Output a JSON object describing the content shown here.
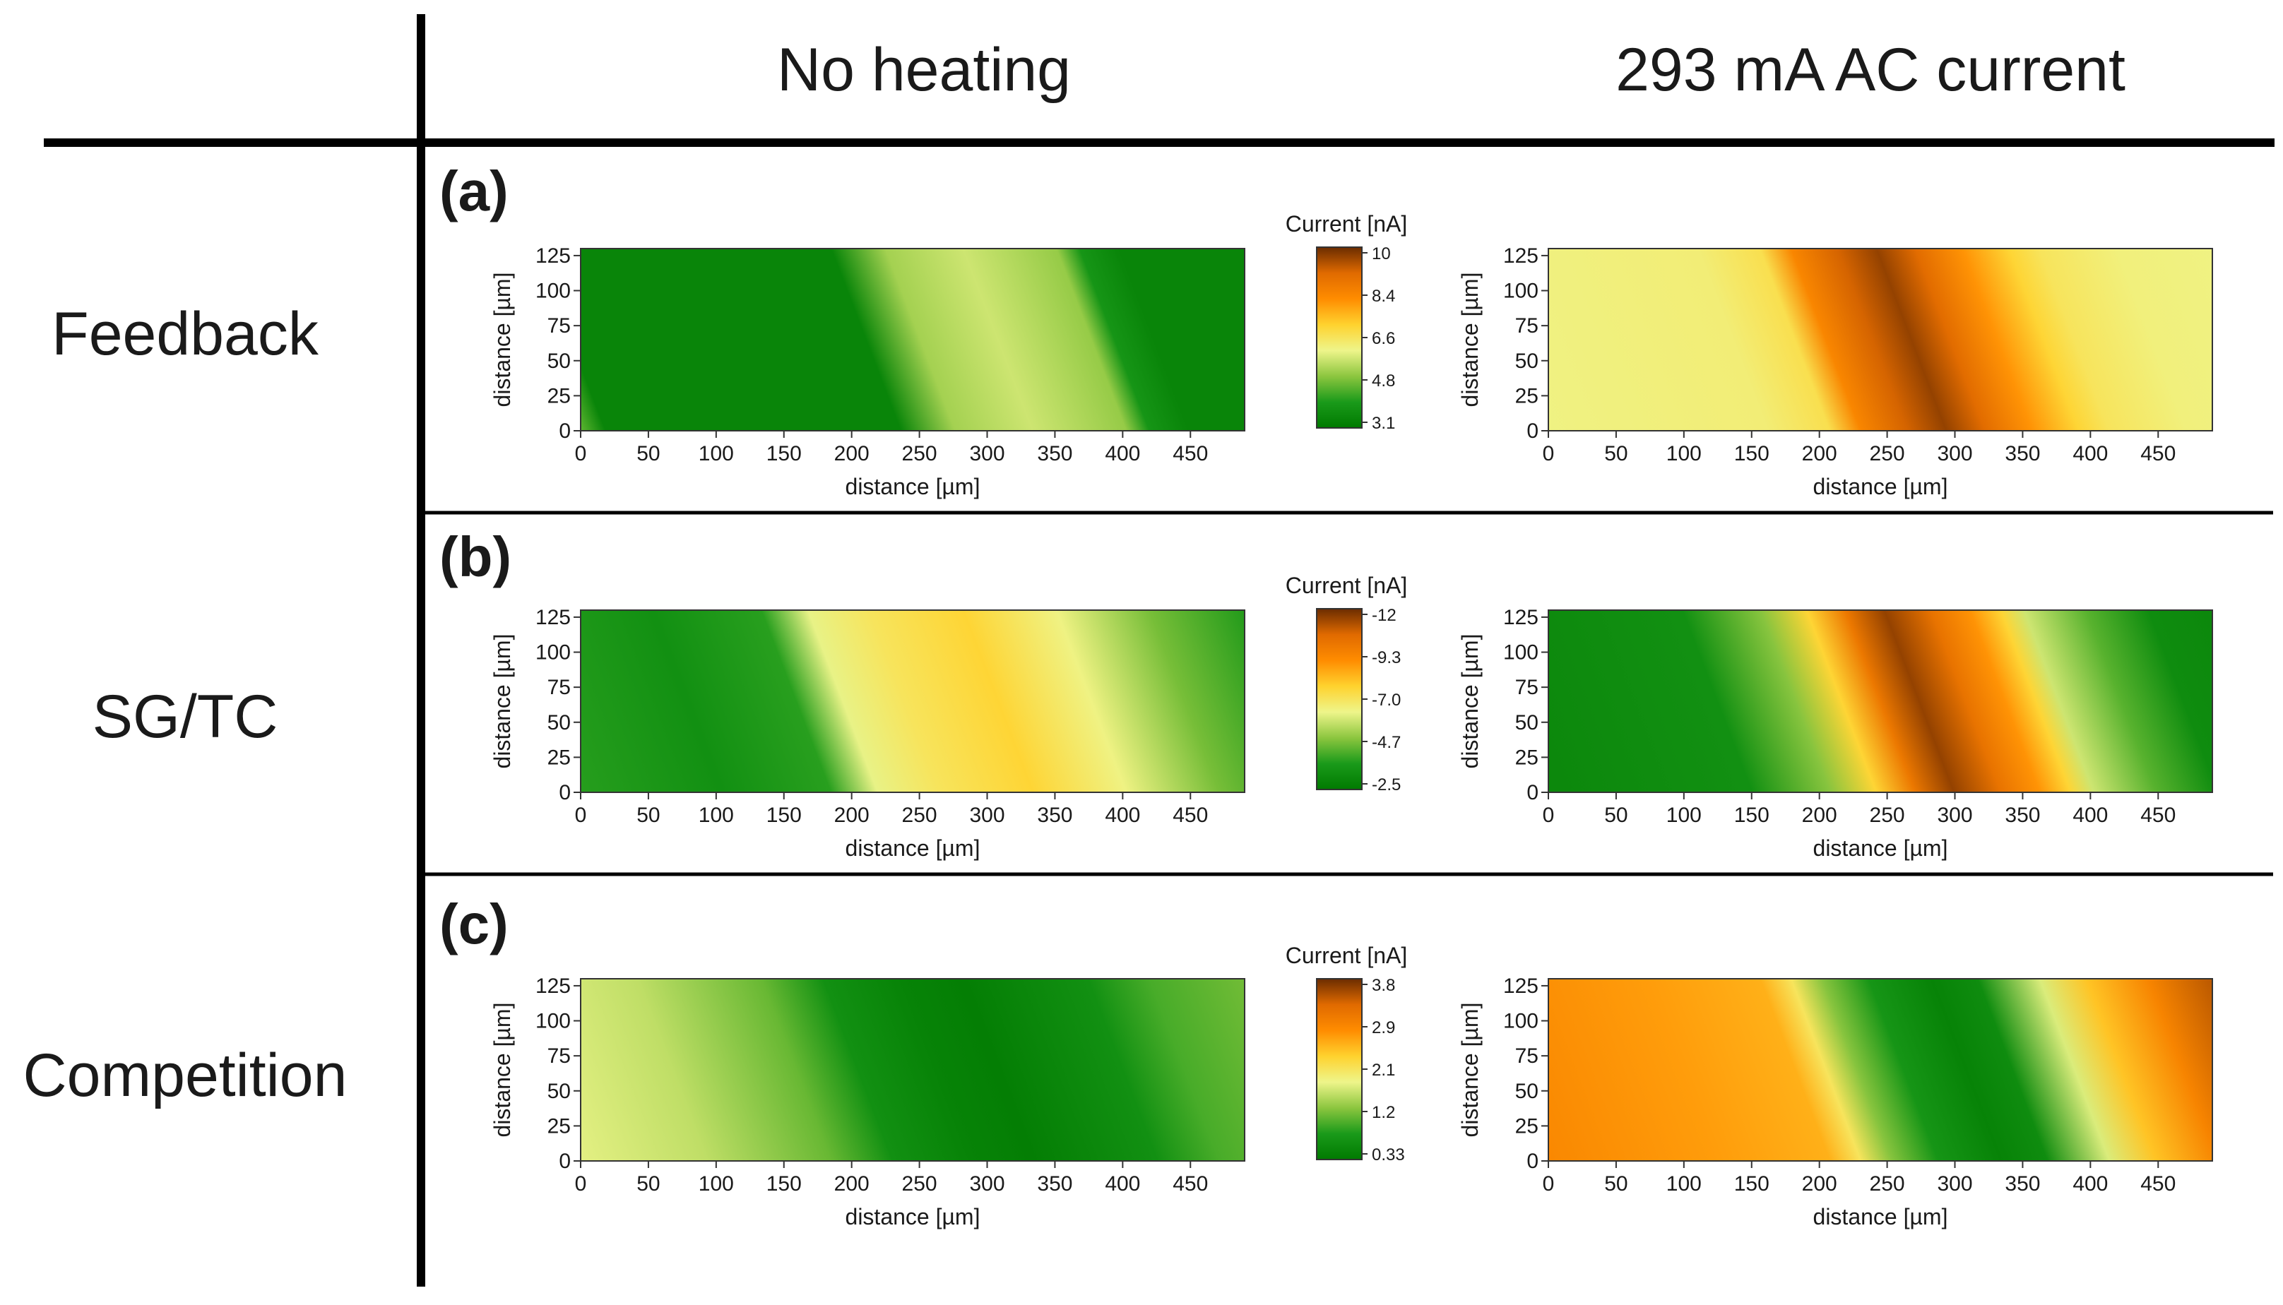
{
  "headers": {
    "col1": "No heating",
    "col2": "293 mA AC current"
  },
  "rows": [
    {
      "tag": "(a)",
      "mode": "Feedback",
      "colorbar": {
        "label": "Current [nA]",
        "ticks": [
          "10",
          "8.4",
          "6.6",
          "4.8",
          "3.1"
        ]
      }
    },
    {
      "tag": "(b)",
      "mode": "SG/TC",
      "colorbar": {
        "label": "Current [nA]",
        "ticks": [
          "-12",
          "-9.3",
          "-7.0",
          "-4.7",
          "-2.5"
        ]
      }
    },
    {
      "tag": "(c)",
      "mode": "Competition",
      "colorbar": {
        "label": "Current [nA]",
        "ticks": [
          "3.8",
          "2.9",
          "2.1",
          "1.2",
          "0.33"
        ]
      }
    }
  ],
  "colors": {
    "colormap": [
      "#007a00",
      "#1a9a1a",
      "#8cc63f",
      "#eef58a",
      "#ffd22e",
      "#ff8c00",
      "#e06a00",
      "#6b2c00"
    ],
    "table_lines": "#000000",
    "panel_border": "#555555"
  },
  "chart_data": [
    {
      "id": "a-no-heating",
      "type": "heatmap",
      "xlabel": "distance [µm]",
      "ylabel": "distance [µm]",
      "xlim": [
        0,
        490
      ],
      "ylim": [
        0,
        130
      ],
      "xticks": [
        0,
        50,
        100,
        150,
        200,
        250,
        300,
        350,
        400,
        450
      ],
      "yticks": [
        0,
        25,
        50,
        75,
        100,
        125
      ],
      "bands": [
        [
          0,
          0.38
        ],
        [
          10,
          0.22
        ],
        [
          25,
          0.05
        ],
        [
          150,
          0.05
        ],
        [
          215,
          0.05
        ],
        [
          250,
          0.32
        ],
        [
          300,
          0.38
        ],
        [
          360,
          0.3
        ],
        [
          375,
          0.12
        ],
        [
          400,
          0.05
        ],
        [
          490,
          0.05
        ]
      ]
    },
    {
      "id": "a-heating",
      "type": "heatmap",
      "xlabel": "distance [µm]",
      "ylabel": "distance [µm]",
      "xlim": [
        0,
        490
      ],
      "ylim": [
        0,
        130
      ],
      "xticks": [
        0,
        50,
        100,
        150,
        200,
        250,
        300,
        350,
        400,
        450
      ],
      "yticks": [
        0,
        25,
        50,
        75,
        100,
        125
      ],
      "bands": [
        [
          0,
          0.44
        ],
        [
          150,
          0.46
        ],
        [
          190,
          0.52
        ],
        [
          210,
          0.74
        ],
        [
          240,
          0.87
        ],
        [
          265,
          0.95
        ],
        [
          290,
          0.85
        ],
        [
          320,
          0.7
        ],
        [
          350,
          0.56
        ],
        [
          370,
          0.5
        ],
        [
          420,
          0.45
        ],
        [
          490,
          0.44
        ]
      ]
    },
    {
      "id": "b-no-heating",
      "type": "heatmap",
      "xlabel": "distance [µm]",
      "ylabel": "distance [µm]",
      "xlim": [
        0,
        490
      ],
      "ylim": [
        0,
        130
      ],
      "xticks": [
        0,
        50,
        100,
        150,
        200,
        250,
        300,
        350,
        400,
        450
      ],
      "yticks": [
        0,
        25,
        50,
        75,
        100,
        125
      ],
      "bands": [
        [
          0,
          0.16
        ],
        [
          100,
          0.1
        ],
        [
          170,
          0.16
        ],
        [
          200,
          0.42
        ],
        [
          240,
          0.5
        ],
        [
          300,
          0.56
        ],
        [
          360,
          0.44
        ],
        [
          420,
          0.26
        ],
        [
          490,
          0.12
        ]
      ]
    },
    {
      "id": "b-heating",
      "type": "heatmap",
      "xlabel": "distance [µm]",
      "ylabel": "distance [µm]",
      "xlim": [
        0,
        490
      ],
      "ylim": [
        0,
        130
      ],
      "xticks": [
        0,
        50,
        100,
        150,
        200,
        250,
        300,
        350,
        400,
        450
      ],
      "yticks": [
        0,
        25,
        50,
        75,
        100,
        125
      ],
      "bands": [
        [
          0,
          0.06
        ],
        [
          140,
          0.1
        ],
        [
          190,
          0.28
        ],
        [
          220,
          0.56
        ],
        [
          245,
          0.8
        ],
        [
          270,
          0.95
        ],
        [
          300,
          0.82
        ],
        [
          325,
          0.7
        ],
        [
          345,
          0.56
        ],
        [
          360,
          0.38
        ],
        [
          400,
          0.22
        ],
        [
          440,
          0.08
        ],
        [
          490,
          0.06
        ]
      ]
    },
    {
      "id": "c-no-heating",
      "type": "heatmap",
      "xlabel": "distance [µm]",
      "ylabel": "distance [µm]",
      "xlim": [
        0,
        490
      ],
      "ylim": [
        0,
        130
      ],
      "xticks": [
        0,
        50,
        100,
        150,
        200,
        250,
        300,
        350,
        400,
        450
      ],
      "yticks": [
        0,
        25,
        50,
        75,
        100,
        125
      ],
      "bands": [
        [
          0,
          0.42
        ],
        [
          90,
          0.36
        ],
        [
          170,
          0.24
        ],
        [
          210,
          0.1
        ],
        [
          260,
          0.04
        ],
        [
          300,
          0.02
        ],
        [
          380,
          0.1
        ],
        [
          420,
          0.2
        ],
        [
          490,
          0.26
        ]
      ]
    },
    {
      "id": "c-heating",
      "type": "heatmap",
      "xlabel": "distance [µm]",
      "ylabel": "distance [µm]",
      "xlim": [
        0,
        490
      ],
      "ylim": [
        0,
        130
      ],
      "xticks": [
        0,
        50,
        100,
        150,
        200,
        250,
        300,
        350,
        400,
        450
      ],
      "yticks": [
        0,
        25,
        50,
        75,
        100,
        125
      ],
      "bands": [
        [
          0,
          0.74
        ],
        [
          120,
          0.68
        ],
        [
          190,
          0.64
        ],
        [
          210,
          0.5
        ],
        [
          230,
          0.28
        ],
        [
          260,
          0.12
        ],
        [
          300,
          0.04
        ],
        [
          330,
          0.08
        ],
        [
          370,
          0.4
        ],
        [
          400,
          0.6
        ],
        [
          440,
          0.75
        ],
        [
          490,
          0.92
        ]
      ]
    }
  ]
}
